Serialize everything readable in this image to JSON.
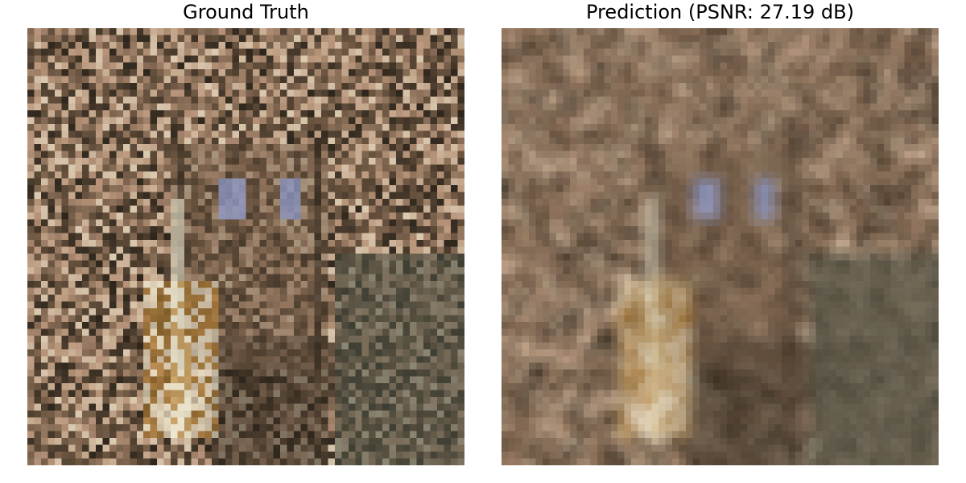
{
  "panels": [
    {
      "title": "Ground Truth"
    },
    {
      "title": "Prediction (PSNR: 27.19 dB)"
    }
  ],
  "palette": {
    "background": "#ffffff",
    "forest_dark": "#2e261c",
    "forest_mid": "#6a5440",
    "bark_light": "#b8957a",
    "fur_white": "#f2eed6",
    "fur_orange": "#c48a34",
    "eye_blue": "#8c98c8",
    "moss_grey": "#4a5044"
  }
}
